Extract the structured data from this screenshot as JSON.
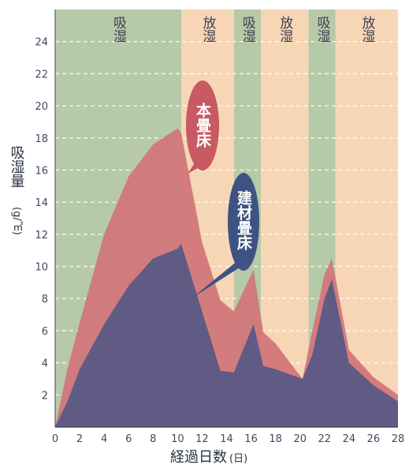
{
  "chart_data": {
    "type": "area",
    "xlabel": "経過日数",
    "xlabel_unit": "(日)",
    "ylabel": "吸湿量",
    "ylabel_unit": "(g/㎡)",
    "xlim": [
      0,
      28
    ],
    "ylim": [
      0,
      26
    ],
    "x_ticks": [
      0,
      2,
      4,
      6,
      8,
      10,
      12,
      14,
      16,
      18,
      20,
      22,
      24,
      26,
      28
    ],
    "y_ticks": [
      2,
      4,
      6,
      8,
      10,
      12,
      14,
      16,
      18,
      20,
      22,
      24
    ],
    "grid": true,
    "bands": [
      {
        "label": "吸湿",
        "from": 0,
        "to": 10.3,
        "color": "#b6c9a8"
      },
      {
        "label": "放湿",
        "from": 10.3,
        "to": 14.6,
        "color": "#f7d6b6"
      },
      {
        "label": "吸湿",
        "from": 14.6,
        "to": 16.8,
        "color": "#b6c9a8"
      },
      {
        "label": "放湿",
        "from": 16.8,
        "to": 20.7,
        "color": "#f7d6b6"
      },
      {
        "label": "吸湿",
        "from": 20.7,
        "to": 22.9,
        "color": "#b6c9a8"
      },
      {
        "label": "放湿",
        "from": 22.9,
        "to": 28,
        "color": "#f7d6b6"
      }
    ],
    "series": [
      {
        "name": "本畳床",
        "color": "#d2777a",
        "x": [
          0,
          1,
          2,
          4,
          6,
          8,
          10,
          10.3,
          12,
          13.5,
          14.6,
          16.2,
          17,
          18,
          20.2,
          21,
          22,
          22.6,
          24,
          26,
          28
        ],
        "y": [
          0,
          3.6,
          6.5,
          12,
          15.6,
          17.6,
          18.6,
          18.3,
          11.5,
          7.9,
          7.2,
          9.8,
          5.9,
          5.2,
          3.0,
          6.0,
          9.5,
          10.5,
          4.8,
          3.1,
          2.0
        ]
      },
      {
        "name": "建材畳床",
        "color": "#5a5a85",
        "x": [
          0,
          1,
          2,
          4,
          6,
          8,
          10,
          10.3,
          12,
          13.5,
          14.6,
          16.2,
          17,
          18,
          20.2,
          21,
          22,
          22.6,
          24,
          26,
          28
        ],
        "y": [
          0,
          1.6,
          3.6,
          6.4,
          8.8,
          10.5,
          11.1,
          11.4,
          7.2,
          3.5,
          3.4,
          6.4,
          3.8,
          3.6,
          3.0,
          4.5,
          8.0,
          9.2,
          4.0,
          2.6,
          1.6
        ]
      }
    ],
    "callouts": [
      {
        "text": "本畳床",
        "series": 0,
        "color": "#c85a64"
      },
      {
        "text": "建材畳床",
        "series": 1,
        "color": "#3e5382"
      }
    ]
  }
}
